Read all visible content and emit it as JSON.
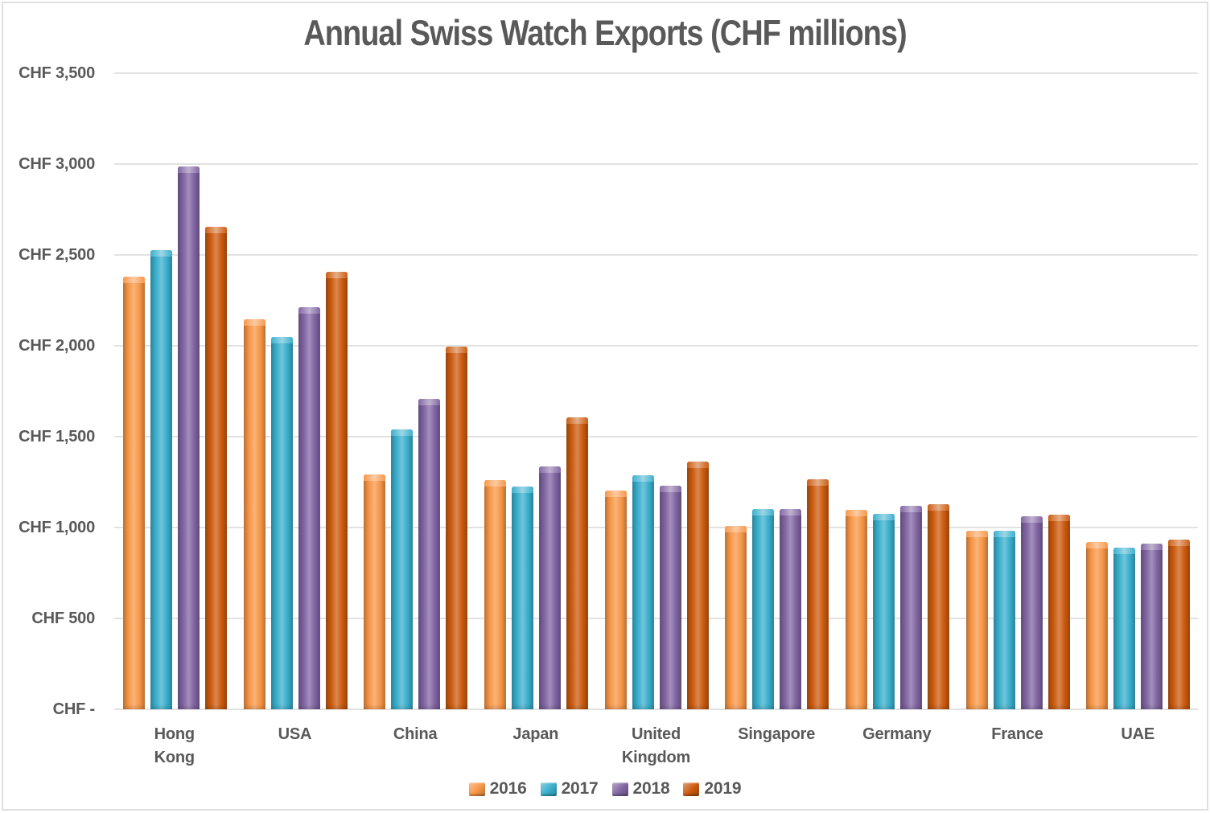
{
  "chart_data": {
    "type": "bar",
    "title": "Annual Swiss Watch Exports (CHF millions)",
    "categories": [
      "Hong Kong",
      "USA",
      "China",
      "Japan",
      "United Kingdom",
      "Singapore",
      "Germany",
      "France",
      "UAE"
    ],
    "series": [
      {
        "name": "2016",
        "color": "#F79646",
        "values": [
          2381,
          2146,
          1293,
          1262,
          1205,
          1010,
          1098,
          984,
          921
        ]
      },
      {
        "name": "2017",
        "color": "#38AECC",
        "values": [
          2525,
          2049,
          1539,
          1224,
          1290,
          1101,
          1077,
          981,
          890
        ]
      },
      {
        "name": "2018",
        "color": "#8064A2",
        "values": [
          2987,
          2211,
          1709,
          1338,
          1232,
          1104,
          1121,
          1062,
          911
        ]
      },
      {
        "name": "2019",
        "color": "#CB5A0E",
        "values": [
          2656,
          2407,
          1996,
          1605,
          1365,
          1267,
          1127,
          1072,
          932
        ]
      }
    ],
    "y_ticks": [
      {
        "label": "CHF 3,500",
        "value": 3500
      },
      {
        "label": "CHF 3,000",
        "value": 3000
      },
      {
        "label": "CHF 2,500",
        "value": 2500
      },
      {
        "label": "CHF 2,000",
        "value": 2000
      },
      {
        "label": "CHF 1,500",
        "value": 1500
      },
      {
        "label": "CHF 1,000",
        "value": 1000
      },
      {
        "label": "CHF 500",
        "value": 500
      },
      {
        "label": "CHF -",
        "value": 0
      }
    ],
    "ylim": [
      0,
      3500
    ],
    "grid": true,
    "legend_position": "bottom",
    "text_color": "#595959",
    "gridline_color": "#E2E2E2"
  }
}
